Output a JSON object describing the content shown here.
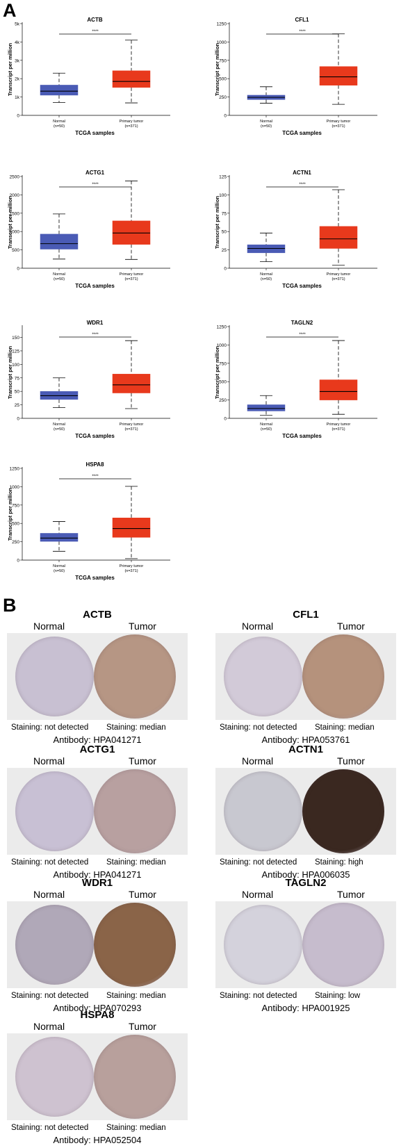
{
  "panel_a_label": "A",
  "panel_b_label": "B",
  "chart_data": [
    {
      "type": "box",
      "title": "ACTB",
      "ylabel": "Transcript per million",
      "xlabel": "TCGA samples",
      "yticks": [
        "0",
        "1k",
        "2k",
        "3k",
        "4k",
        "5k"
      ],
      "ylim": [
        0,
        5000
      ],
      "significance": "****",
      "categories": [
        {
          "name": "Normal",
          "n": "(n=50)",
          "whisker_low": 700,
          "q1": 1100,
          "median": 1320,
          "q3": 1650,
          "whisker_high": 2300,
          "color": "#4a5bb5"
        },
        {
          "name": "Primary tumor",
          "n": "(n=371)",
          "whisker_low": 680,
          "q1": 1520,
          "median": 1850,
          "q3": 2430,
          "whisker_high": 4100,
          "color": "#e8391c"
        }
      ]
    },
    {
      "type": "box",
      "title": "CFL1",
      "ylabel": "Transcript per million",
      "xlabel": "TCGA samples",
      "yticks": [
        "0",
        "250",
        "500",
        "750",
        "1000",
        "1250"
      ],
      "ylim": [
        0,
        1250
      ],
      "significance": "****",
      "categories": [
        {
          "name": "Normal",
          "n": "(n=50)",
          "whisker_low": 165,
          "q1": 215,
          "median": 245,
          "q3": 275,
          "whisker_high": 390,
          "color": "#4a5bb5"
        },
        {
          "name": "Primary tumor",
          "n": "(n=371)",
          "whisker_low": 150,
          "q1": 410,
          "median": 525,
          "q3": 665,
          "whisker_high": 1110,
          "color": "#e8391c"
        }
      ]
    },
    {
      "type": "box",
      "title": "ACTG1",
      "ylabel": "Transcript per million",
      "xlabel": "TCGA samples",
      "yticks": [
        "0",
        "500",
        "1000",
        "1500",
        "2000",
        "2500"
      ],
      "ylim": [
        0,
        2500
      ],
      "significance": "****",
      "categories": [
        {
          "name": "Normal",
          "n": "(n=50)",
          "whisker_low": 250,
          "q1": 520,
          "median": 670,
          "q3": 930,
          "whisker_high": 1480,
          "color": "#4a5bb5"
        },
        {
          "name": "Primary tumor",
          "n": "(n=371)",
          "whisker_low": 240,
          "q1": 650,
          "median": 960,
          "q3": 1290,
          "whisker_high": 2380,
          "color": "#e8391c"
        }
      ]
    },
    {
      "type": "box",
      "title": "ACTN1",
      "ylabel": "Transcript per million",
      "xlabel": "TCGA samples",
      "yticks": [
        "0",
        "25",
        "50",
        "75",
        "100",
        "125"
      ],
      "ylim": [
        0,
        125
      ],
      "significance": "****",
      "categories": [
        {
          "name": "Normal",
          "n": "(n=50)",
          "whisker_low": 9,
          "q1": 21,
          "median": 27,
          "q3": 32,
          "whisker_high": 48,
          "color": "#4a5bb5"
        },
        {
          "name": "Primary tumor",
          "n": "(n=371)",
          "whisker_low": 4,
          "q1": 27,
          "median": 40,
          "q3": 57,
          "whisker_high": 107,
          "color": "#e8391c"
        }
      ]
    },
    {
      "type": "box",
      "title": "WDR1",
      "ylabel": "Transcript per million",
      "xlabel": "TCGA samples",
      "yticks": [
        "0",
        "25",
        "50",
        "75",
        "100",
        "125",
        "150"
      ],
      "ylim": [
        0,
        170
      ],
      "significance": "****",
      "categories": [
        {
          "name": "Normal",
          "n": "(n=50)",
          "whisker_low": 20,
          "q1": 35,
          "median": 42,
          "q3": 50,
          "whisker_high": 75,
          "color": "#4a5bb5"
        },
        {
          "name": "Primary tumor",
          "n": "(n=371)",
          "whisker_low": 18,
          "q1": 47,
          "median": 62,
          "q3": 82,
          "whisker_high": 144,
          "color": "#e8391c"
        }
      ]
    },
    {
      "type": "box",
      "title": "TAGLN2",
      "ylabel": "Transcript per million",
      "xlabel": "TCGA samples",
      "yticks": [
        "0",
        "250",
        "500",
        "750",
        "1000",
        "1250"
      ],
      "ylim": [
        0,
        1250
      ],
      "significance": "****",
      "categories": [
        {
          "name": "Normal",
          "n": "(n=50)",
          "whisker_low": 40,
          "q1": 100,
          "median": 135,
          "q3": 185,
          "whisker_high": 310,
          "color": "#4a5bb5"
        },
        {
          "name": "Primary tumor",
          "n": "(n=371)",
          "whisker_low": 55,
          "q1": 250,
          "median": 365,
          "q3": 525,
          "whisker_high": 1060,
          "color": "#e8391c"
        }
      ]
    },
    {
      "type": "box",
      "title": "HSPA8",
      "ylabel": "Transcript per million",
      "xlabel": "TCGA samples",
      "yticks": [
        "0",
        "250",
        "500",
        "750",
        "1000",
        "1250"
      ],
      "ylim": [
        0,
        1250
      ],
      "significance": "****",
      "categories": [
        {
          "name": "Normal",
          "n": "(n=50)",
          "whisker_low": 120,
          "q1": 255,
          "median": 300,
          "q3": 365,
          "whisker_high": 525,
          "color": "#4a5bb5"
        },
        {
          "name": "Primary tumor",
          "n": "(n=371)",
          "whisker_low": 20,
          "q1": 310,
          "median": 430,
          "q3": 575,
          "whisker_high": 1005,
          "color": "#e8391c"
        }
      ]
    }
  ],
  "ihc": [
    {
      "gene": "ACTB",
      "normal_label": "Normal",
      "tumor_label": "Tumor",
      "normal_staining": "Staining: not detected",
      "tumor_staining": "Staining: median",
      "antibody": "Antibody: HPA041271",
      "normal_color": "#c8c0d2",
      "tumor_color": "#b69684"
    },
    {
      "gene": "CFL1",
      "normal_label": "Normal",
      "tumor_label": "Tumor",
      "normal_staining": "Staining: not detected",
      "tumor_staining": "Staining: median",
      "antibody": "Antibody: HPA053761",
      "normal_color": "#d2cad8",
      "tumor_color": "#b5927c"
    },
    {
      "gene": "ACTG1",
      "normal_label": "Normal",
      "tumor_label": "Tumor",
      "normal_staining": "Staining: not detected",
      "tumor_staining": "Staining: median",
      "antibody": "Antibody: HPA041271",
      "normal_color": "#c8c0d4",
      "tumor_color": "#b8a0a0"
    },
    {
      "gene": "ACTN1",
      "normal_label": "Normal",
      "tumor_label": "Tumor",
      "normal_staining": "Staining: not detected",
      "tumor_staining": "Staining: high",
      "antibody": "Antibody: HPA006035",
      "normal_color": "#c8c8d0",
      "tumor_color": "#3a2820"
    },
    {
      "gene": "WDR1",
      "normal_label": "Normal",
      "tumor_label": "Tumor",
      "normal_staining": "Staining: not detected",
      "tumor_staining": "Staining: median",
      "antibody": "Antibody: HPA070293",
      "normal_color": "#b0a8b8",
      "tumor_color": "#8a6448"
    },
    {
      "gene": "TAGLN2",
      "normal_label": "Normal",
      "tumor_label": "Tumor",
      "normal_staining": "Staining: not detected",
      "tumor_staining": "Staining: low",
      "antibody": "Antibody: HPA001925",
      "normal_color": "#d4d2dc",
      "tumor_color": "#c6bccd"
    },
    {
      "gene": "HSPA8",
      "normal_label": "Normal",
      "tumor_label": "Tumor",
      "normal_staining": "Staining: not detected",
      "tumor_staining": "Staining: median",
      "antibody": "Antibody: HPA052504",
      "normal_color": "#cec2d0",
      "tumor_color": "#b8a09c"
    }
  ]
}
